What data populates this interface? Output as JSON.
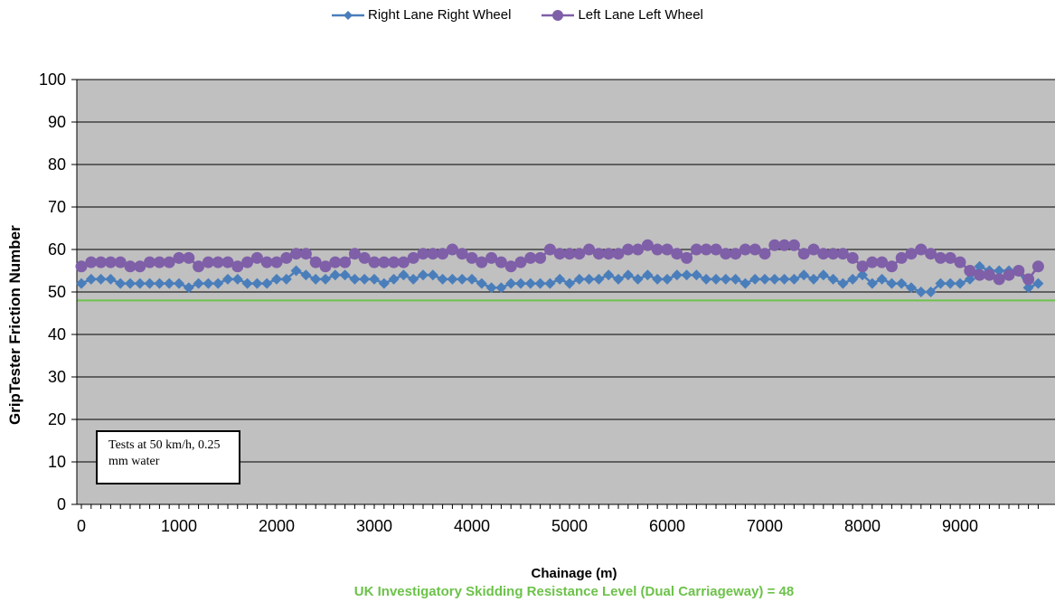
{
  "chart_data": {
    "type": "line",
    "xlabel": "Chainage (m)",
    "ylabel": "GripTester Friction Number",
    "xlim": [
      0,
      9800
    ],
    "ylim": [
      0,
      100
    ],
    "x_ticks": [
      "0",
      "1000",
      "2000",
      "3000",
      "4000",
      "5000",
      "6000",
      "7000",
      "8000",
      "9000"
    ],
    "y_ticks": [
      "0",
      "10",
      "20",
      "30",
      "40",
      "50",
      "60",
      "70",
      "80",
      "90",
      "100"
    ],
    "grid": "horizontal",
    "legend_position": "top",
    "plot_background": "#c0c0c0",
    "annotation": "Tests at 50 km/h, 0.25 mm water",
    "reference_line": {
      "value": 48,
      "color": "#6cc24a",
      "label": "UK Investigatory Skidding Resistance Level (Dual Carriageway) = 48"
    },
    "x": [
      0,
      100,
      200,
      300,
      400,
      500,
      600,
      700,
      800,
      900,
      1000,
      1100,
      1200,
      1300,
      1400,
      1500,
      1600,
      1700,
      1800,
      1900,
      2000,
      2100,
      2200,
      2300,
      2400,
      2500,
      2600,
      2700,
      2800,
      2900,
      3000,
      3100,
      3200,
      3300,
      3400,
      3500,
      3600,
      3700,
      3800,
      3900,
      4000,
      4100,
      4200,
      4300,
      4400,
      4500,
      4600,
      4700,
      4800,
      4900,
      5000,
      5100,
      5200,
      5300,
      5400,
      5500,
      5600,
      5700,
      5800,
      5900,
      6000,
      6100,
      6200,
      6300,
      6400,
      6500,
      6600,
      6700,
      6800,
      6900,
      7000,
      7100,
      7200,
      7300,
      7400,
      7500,
      7600,
      7700,
      7800,
      7900,
      8000,
      8100,
      8200,
      8300,
      8400,
      8500,
      8600,
      8700,
      8800,
      8900,
      9000,
      9100,
      9200,
      9300,
      9400,
      9500,
      9600,
      9700,
      9800
    ],
    "series": [
      {
        "name": "Right Lane Right Wheel",
        "color": "#4a7ebb",
        "marker": "diamond",
        "values": [
          52,
          53,
          53,
          53,
          52,
          52,
          52,
          52,
          52,
          52,
          52,
          51,
          52,
          52,
          52,
          53,
          53,
          52,
          52,
          52,
          53,
          53,
          55,
          54,
          53,
          53,
          54,
          54,
          53,
          53,
          53,
          52,
          53,
          54,
          53,
          54,
          54,
          53,
          53,
          53,
          53,
          52,
          51,
          51,
          52,
          52,
          52,
          52,
          52,
          53,
          52,
          53,
          53,
          53,
          54,
          53,
          54,
          53,
          54,
          53,
          53,
          54,
          54,
          54,
          53,
          53,
          53,
          53,
          52,
          53,
          53,
          53,
          53,
          53,
          54,
          53,
          54,
          53,
          52,
          53,
          54,
          52,
          53,
          52,
          52,
          51,
          50,
          50,
          52,
          52,
          52,
          53,
          56,
          55,
          55,
          55,
          55,
          51,
          52
        ]
      },
      {
        "name": "Left Lane Left Wheel",
        "color": "#7f5fa8",
        "marker": "circle",
        "values": [
          56,
          57,
          57,
          57,
          57,
          56,
          56,
          57,
          57,
          57,
          58,
          58,
          56,
          57,
          57,
          57,
          56,
          57,
          58,
          57,
          57,
          58,
          59,
          59,
          57,
          56,
          57,
          57,
          59,
          58,
          57,
          57,
          57,
          57,
          58,
          59,
          59,
          59,
          60,
          59,
          58,
          57,
          58,
          57,
          56,
          57,
          58,
          58,
          60,
          59,
          59,
          59,
          60,
          59,
          59,
          59,
          60,
          60,
          61,
          60,
          60,
          59,
          58,
          60,
          60,
          60,
          59,
          59,
          60,
          60,
          59,
          61,
          61,
          61,
          59,
          60,
          59,
          59,
          59,
          58,
          56,
          57,
          57,
          56,
          58,
          59,
          60,
          59,
          58,
          58,
          57,
          55,
          54,
          54,
          53,
          54,
          55,
          53,
          56
        ]
      }
    ]
  }
}
